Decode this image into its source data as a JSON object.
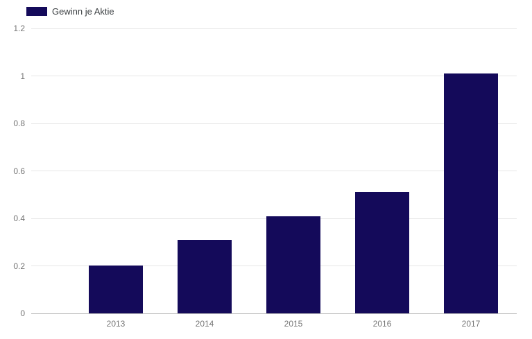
{
  "chart_data": {
    "type": "bar",
    "title": "",
    "legend": "Gewinn je Aktie",
    "categories": [
      "2013",
      "2014",
      "2015",
      "2016",
      "2017"
    ],
    "series": [
      {
        "name": "Gewinn je Aktie",
        "values": [
          0.2,
          0.31,
          0.41,
          0.51,
          1.01
        ]
      }
    ],
    "xlabel": "",
    "ylabel": "",
    "ylim": [
      0,
      1.2
    ],
    "yticks": [
      0,
      0.2,
      0.4,
      0.6,
      0.8,
      1,
      1.2
    ],
    "ytick_labels": [
      "0",
      "0.2",
      "0.4",
      "0.6",
      "0.8",
      "1",
      "1.2"
    ],
    "grid": true,
    "legend_position": "top-left",
    "colors": {
      "bar": "#140a5a",
      "gridline": "#e6e6e6",
      "baseline": "#bdbdbd",
      "tick_text": "#757575",
      "legend_text": "#3c4043",
      "background": "#ffffff"
    }
  }
}
